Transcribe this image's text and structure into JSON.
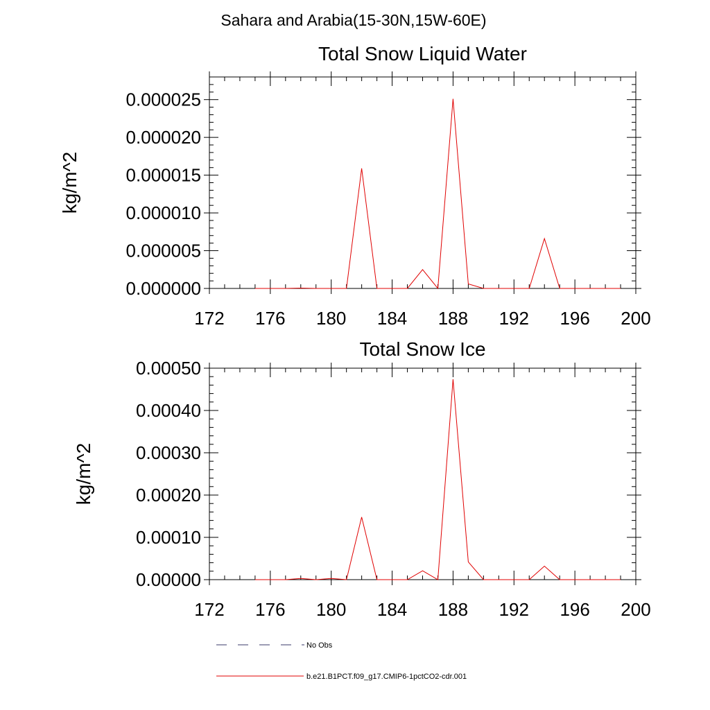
{
  "page_title": "Sahara and Arabia(15-30N,15W-60E)",
  "colors": {
    "model_line": "#e00000",
    "obs_line": "#3a3a6a",
    "axes": "#000000"
  },
  "legend": [
    {
      "label": "No Obs",
      "style": "dashed",
      "color": "#3a3a6a"
    },
    {
      "label": "b.e21.B1PCT.f09_g17.CMIP6-1pctCO2-cdr.001",
      "style": "solid",
      "color": "#e00000"
    }
  ],
  "chart_data": [
    {
      "type": "line",
      "title": "Total Snow Liquid Water",
      "xlabel": "",
      "ylabel": "kg/m^2",
      "xlim": [
        172,
        200
      ],
      "ylim": [
        0,
        2.8e-05
      ],
      "xticks": [
        "172",
        "176",
        "180",
        "184",
        "188",
        "192",
        "196",
        "200"
      ],
      "yticks": [
        "0.000000",
        "0.000005",
        "0.000010",
        "0.000015",
        "0.000020",
        "0.000025"
      ],
      "series": [
        {
          "name": "b.e21.B1PCT.f09_g17.CMIP6-1pctCO2-cdr.001",
          "x": [
            175,
            176,
            177,
            178,
            179,
            180,
            181,
            182,
            183,
            184,
            185,
            186,
            187,
            188,
            189,
            190,
            191,
            192,
            193,
            194,
            195,
            196,
            197,
            198,
            199
          ],
          "y": [
            0,
            0,
            0,
            5e-08,
            0,
            0,
            0,
            1.59e-05,
            0,
            0,
            0,
            2.5e-06,
            0,
            2.51e-05,
            6e-07,
            0,
            0,
            0,
            0,
            6.6e-06,
            0,
            0,
            0,
            0,
            0
          ]
        }
      ]
    },
    {
      "type": "line",
      "title": "Total Snow Ice",
      "xlabel": "",
      "ylabel": "kg/m^2",
      "xlim": [
        172,
        200
      ],
      "ylim": [
        0,
        0.0005
      ],
      "xticks": [
        "172",
        "176",
        "180",
        "184",
        "188",
        "192",
        "196",
        "200"
      ],
      "yticks": [
        "0.00000",
        "0.00010",
        "0.00020",
        "0.00030",
        "0.00040",
        "0.00050"
      ],
      "series": [
        {
          "name": "b.e21.B1PCT.f09_g17.CMIP6-1pctCO2-cdr.001",
          "x": [
            175,
            176,
            177,
            178,
            179,
            180,
            181,
            182,
            183,
            184,
            185,
            186,
            187,
            188,
            189,
            190,
            191,
            192,
            193,
            194,
            195,
            196,
            197,
            198,
            199
          ],
          "y": [
            0,
            0,
            0,
            3e-06,
            0,
            3e-06,
            0,
            0.000148,
            0,
            0,
            0,
            2.1e-05,
            0,
            0.000474,
            4.2e-05,
            0,
            0,
            0,
            0,
            3.2e-05,
            0,
            0,
            0,
            0,
            0
          ]
        }
      ]
    }
  ]
}
